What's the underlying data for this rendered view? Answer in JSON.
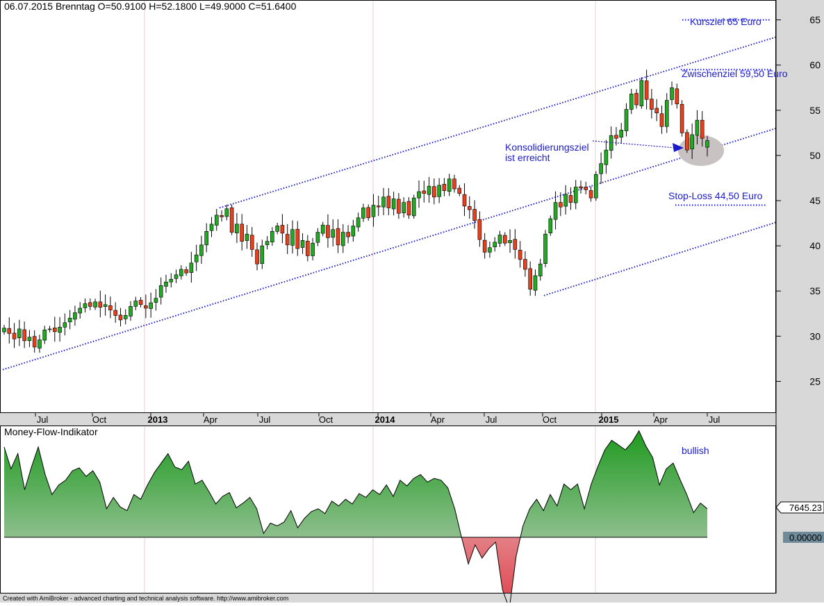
{
  "header": {
    "quote": "06.07.2015 Brenntag  O=50.9100  H=52.1800  L=49.9000  C=51.6400"
  },
  "footer": {
    "text": "Created with AmiBroker - advanced charting and technical analysis software. http://www.amibroker.com"
  },
  "colors": {
    "up": "#22aa22",
    "down": "#e8401c",
    "wick": "#000000",
    "annotation": "#1a1acc",
    "grid": "#f2c8cc",
    "mfi_green": "#1f9a1f",
    "mfi_red": "#e0404a",
    "axis_panel": "#d8d8d8"
  },
  "chart_data": [
    {
      "type": "candlestick",
      "title": "06.07.2015 Brenntag  O=50.9100  H=52.1800  L=49.9000  C=51.6400",
      "ylim": [
        21.5,
        67.2
      ],
      "y_ticks": [
        25,
        30,
        35,
        40,
        45,
        50,
        55,
        60,
        65
      ],
      "x_labels": [
        "Jul",
        "Oct",
        "2013",
        "Apr",
        "Jul",
        "Oct",
        "2014",
        "Apr",
        "Jul",
        "Oct",
        "2015",
        "Apr",
        "Jul"
      ],
      "x_label_positions": [
        61,
        143,
        227,
        303,
        381,
        469,
        554,
        630,
        707,
        791,
        876,
        951,
        1028
      ],
      "year_gridlines": [
        208,
        537,
        857
      ],
      "current_values": {
        "open": 50.91,
        "high": 52.18,
        "low": 49.9,
        "close": 51.64
      },
      "closes": [
        30.9,
        30.3,
        29.7,
        30.8,
        29.5,
        29.9,
        28.8,
        29.6,
        30.7,
        30.8,
        30.5,
        31.0,
        31.5,
        32.0,
        32.6,
        33.1,
        33.6,
        33.3,
        33.8,
        33.2,
        33.5,
        32.9,
        32.3,
        31.8,
        32.3,
        33.3,
        33.9,
        33.5,
        33.1,
        33.7,
        34.2,
        35.6,
        36.0,
        36.3,
        36.8,
        37.4,
        37.0,
        38.1,
        39.0,
        40.1,
        41.6,
        42.4,
        43.4,
        43.2,
        44.1,
        41.5,
        42.4,
        40.5,
        41.3,
        39.6,
        38.0,
        40.0,
        40.5,
        41.6,
        42.2,
        41.4,
        40.1,
        41.8,
        39.7,
        40.6,
        38.9,
        40.3,
        41.5,
        42.3,
        40.9,
        41.8,
        40.1,
        41.5,
        41.0,
        42.2,
        43.1,
        44.2,
        43.1,
        44.5,
        44.3,
        45.4,
        44.2,
        45.2,
        43.6,
        44.8,
        43.4,
        45.3,
        46.0,
        45.8,
        46.6,
        45.4,
        46.7,
        46.1,
        47.4,
        46.3,
        45.8,
        44.4,
        44.0,
        42.8,
        40.7,
        39.3,
        39.8,
        40.4,
        41.2,
        40.3,
        40.6,
        39.6,
        38.5,
        37.4,
        35.2,
        36.7,
        38.0,
        41.3,
        43.0,
        44.8,
        44.3,
        45.7,
        44.8,
        46.5,
        46.4,
        46.2,
        45.3,
        47.9,
        49.1,
        50.6,
        52.2,
        51.9,
        52.8,
        55.1,
        56.8,
        55.6,
        58.3,
        56.2,
        55.1,
        54.7,
        53.2,
        56.1,
        57.5,
        55.7,
        52.5,
        50.6,
        52.3,
        53.9,
        51.9,
        51.64
      ],
      "annotations": [
        "Kursziel 65 Euro",
        "Zwischenziel 59,50 Euro",
        "Konsolidierungsziel",
        "ist erreicht",
        "Stop-Loss 44,50 Euro"
      ],
      "levels": {
        "kursziel": 65.0,
        "zwischenziel": 59.5,
        "stop_loss": 44.5
      }
    },
    {
      "type": "area",
      "title": "Money-Flow-Indikator",
      "last_value": "7645.23",
      "zero_label": "0.00000",
      "annotation": "bullish",
      "values": [
        0.95,
        0.72,
        0.88,
        0.5,
        0.74,
        0.95,
        0.66,
        0.45,
        0.55,
        0.6,
        0.7,
        0.73,
        0.64,
        0.7,
        0.58,
        0.3,
        0.42,
        0.32,
        0.28,
        0.45,
        0.4,
        0.55,
        0.68,
        0.78,
        0.88,
        0.74,
        0.71,
        0.8,
        0.56,
        0.6,
        0.48,
        0.35,
        0.43,
        0.47,
        0.31,
        0.36,
        0.42,
        0.3,
        0.04,
        0.15,
        0.12,
        0.16,
        0.28,
        0.1,
        0.2,
        0.27,
        0.3,
        0.25,
        0.38,
        0.33,
        0.4,
        0.35,
        0.46,
        0.42,
        0.5,
        0.45,
        0.55,
        0.43,
        0.6,
        0.54,
        0.62,
        0.66,
        0.58,
        0.62,
        0.6,
        0.52,
        0.3,
        0.0,
        -0.28,
        -0.08,
        -0.22,
        -0.12,
        -0.05,
        -0.55,
        -0.75,
        -0.2,
        0.12,
        0.3,
        0.4,
        0.28,
        0.45,
        0.33,
        0.56,
        0.5,
        0.56,
        0.3,
        0.56,
        0.75,
        0.92,
        1.02,
        0.97,
        0.92,
        1.0,
        1.12,
        0.96,
        0.84,
        0.55,
        0.72,
        0.78,
        0.61,
        0.45,
        0.26,
        0.36,
        0.3
      ]
    }
  ]
}
